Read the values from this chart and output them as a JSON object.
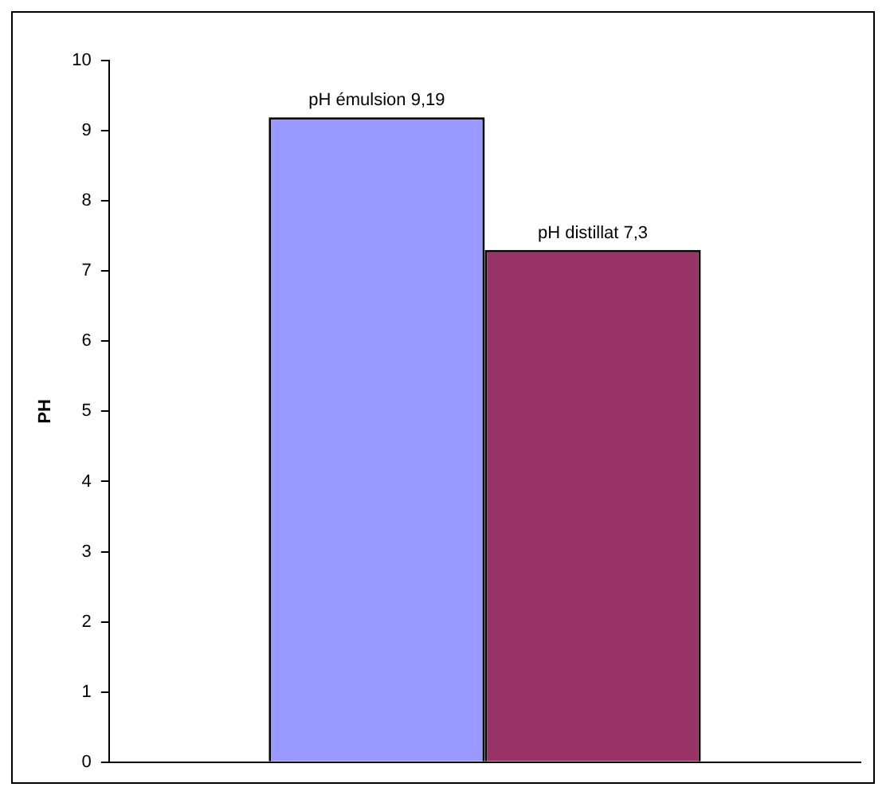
{
  "chart_data": {
    "type": "bar",
    "ylabel": "PH",
    "categories": [
      null
    ],
    "series": [
      {
        "name": "pH émulsion",
        "color": "#9999ff",
        "values": [
          9.19
        ],
        "value_labels": [
          "9,19"
        ]
      },
      {
        "name": "pH distillat",
        "color": "#993366",
        "values": [
          7.3
        ],
        "value_labels": [
          "7,3"
        ]
      }
    ],
    "ylim": [
      0,
      10
    ],
    "yticks": [
      0,
      1,
      2,
      3,
      4,
      5,
      6,
      7,
      8,
      9,
      10
    ],
    "grid": false,
    "legend": false
  }
}
